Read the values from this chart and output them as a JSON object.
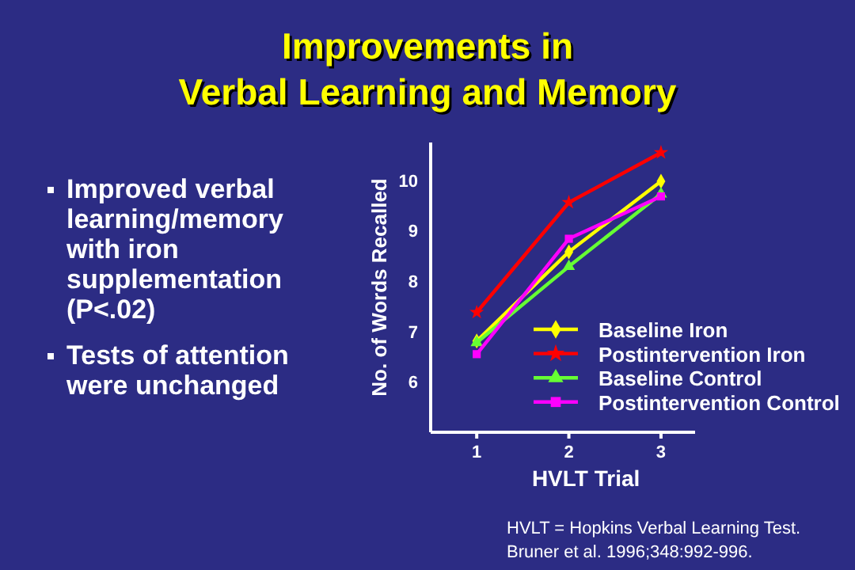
{
  "chart_data": {
    "type": "line",
    "title": "Improvements in\nVerbal Learning and Memory",
    "xlabel": "HVLT Trial",
    "ylabel": "No. of Words Recalled",
    "x": [
      1,
      2,
      3
    ],
    "xlim": [
      0.5,
      3.37
    ],
    "xticks": [
      1,
      2,
      3
    ],
    "ylim": [
      5,
      10.75
    ],
    "yticks": [
      6,
      7,
      8,
      9,
      10
    ],
    "grid": false,
    "legend": "bottom right",
    "series": [
      {
        "name": "Baseline Iron",
        "color": "#ffff00",
        "marker": "diamond",
        "values": [
          6.81,
          8.58,
          9.98
        ]
      },
      {
        "name": "Postintervention Iron",
        "color": "#ff0000",
        "marker": "star",
        "values": [
          7.38,
          9.56,
          10.55
        ]
      },
      {
        "name": "Baseline Control",
        "color": "#66ff33",
        "marker": "triangle",
        "values": [
          6.78,
          8.29,
          9.73
        ]
      },
      {
        "name": "Postintervention Control",
        "color": "#ff00ff",
        "marker": "square",
        "values": [
          6.55,
          8.84,
          9.68
        ]
      }
    ],
    "annotations": [
      "Improved verbal learning/memory with iron supplementation (P<.02)",
      "Tests of attention were unchanged",
      "HVLT = Hopkins Verbal Learning Test.",
      "Bruner et al. 1996;348:992-996."
    ]
  }
}
